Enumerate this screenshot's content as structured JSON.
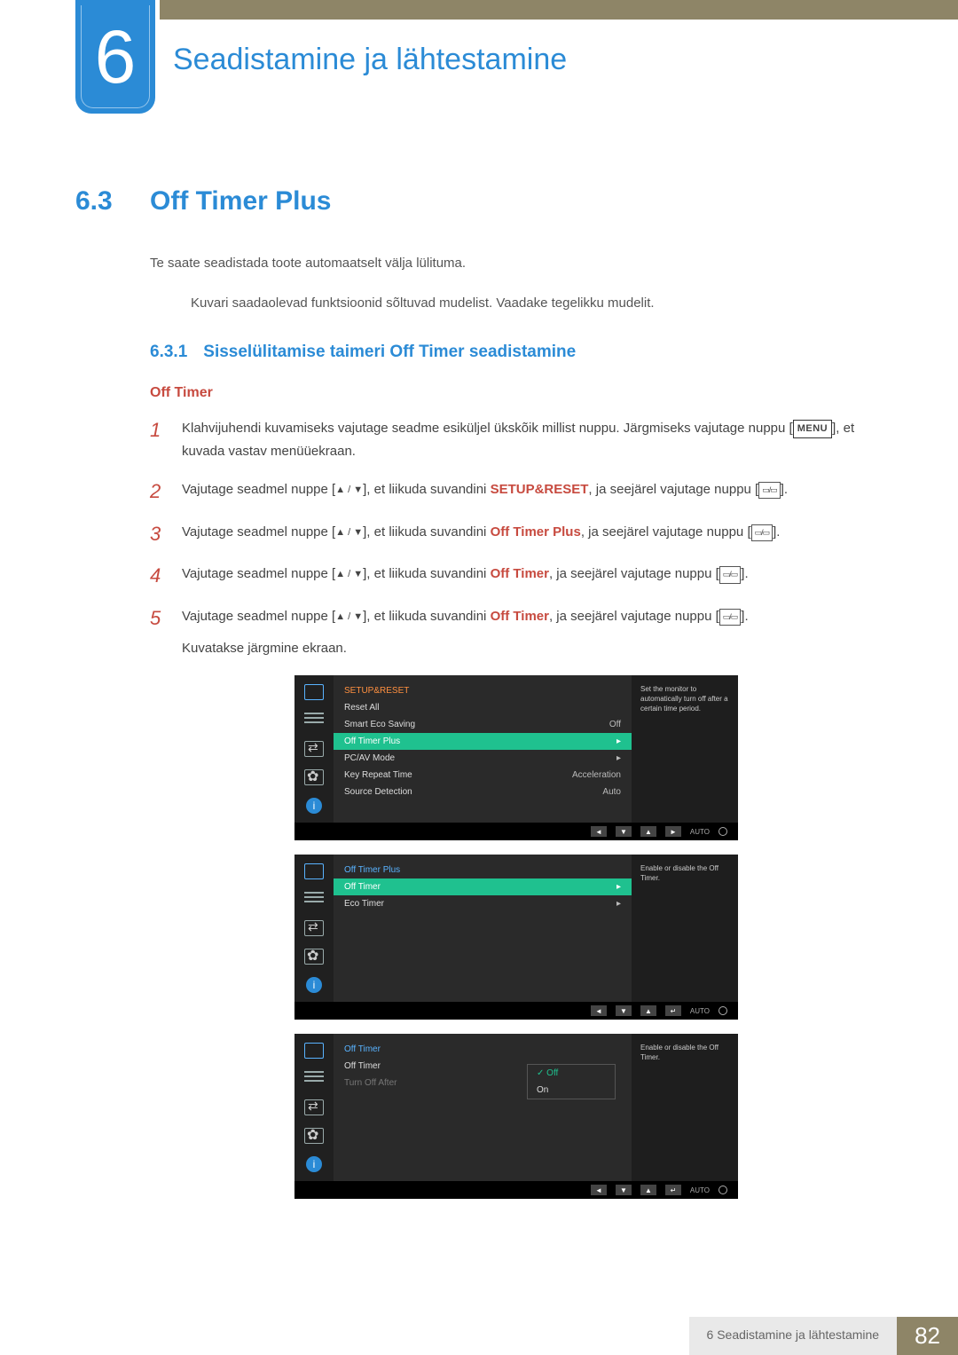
{
  "chapter": {
    "number": "6",
    "title": "Seadistamine ja lähtestamine"
  },
  "section": {
    "number": "6.3",
    "title": "Off Timer Plus"
  },
  "intro": "Te saate seadistada toote automaatselt välja lülituma.",
  "note": "Kuvari saadaolevad funktsioonid sõltuvad mudelist. Vaadake tegelikku mudelit.",
  "subsection": {
    "number": "6.3.1",
    "title": "Sisselülitamise taimeri Off Timer seadistamine"
  },
  "subheading": "Off Timer",
  "menu_label": "MENU",
  "steps": {
    "s1": {
      "num": "1",
      "a": "Klahvijuhendi kuvamiseks vajutage seadme esiküljel ükskõik millist nuppu. Järgmiseks vajutage nuppu [",
      "b": "], et kuvada vastav menüüekraan."
    },
    "s2": {
      "num": "2",
      "a": "Vajutage seadmel nuppe [",
      "b": "], et liikuda suvandini ",
      "target": "SETUP&RESET",
      "c": ", ja seejärel vajutage nuppu [",
      "d": "]."
    },
    "s3": {
      "num": "3",
      "a": "Vajutage seadmel nuppe [",
      "b": "], et liikuda suvandini ",
      "target": "Off Timer Plus",
      "c": ", ja seejärel vajutage nuppu [",
      "d": "]."
    },
    "s4": {
      "num": "4",
      "a": "Vajutage seadmel nuppe [",
      "b": "], et liikuda suvandini ",
      "target": "Off Timer",
      "c": ", ja seejärel vajutage nuppu [",
      "d": "]."
    },
    "s5": {
      "num": "5",
      "a": "Vajutage seadmel nuppe [",
      "b": "], et liikuda suvandini ",
      "target": "Off Timer",
      "c": ", ja seejärel vajutage nuppu [",
      "d": "].",
      "e": "Kuvatakse järgmine ekraan."
    }
  },
  "osd1": {
    "title": "SETUP&RESET",
    "items": [
      {
        "label": "Reset All",
        "val": ""
      },
      {
        "label": "Smart Eco Saving",
        "val": "Off"
      },
      {
        "label": "Off Timer Plus",
        "val": "▸",
        "hl": true
      },
      {
        "label": "PC/AV Mode",
        "val": "▸"
      },
      {
        "label": "Key Repeat Time",
        "val": "Acceleration"
      },
      {
        "label": "Source Detection",
        "val": "Auto"
      }
    ],
    "help": "Set the monitor to automatically turn off after a certain time period."
  },
  "osd2": {
    "title": "Off Timer Plus",
    "items": [
      {
        "label": "Off Timer",
        "val": "▸",
        "hl": true
      },
      {
        "label": "Eco Timer",
        "val": "▸"
      }
    ],
    "help": "Enable or disable the Off Timer."
  },
  "osd3": {
    "title": "Off Timer",
    "items": [
      {
        "label": "Off Timer",
        "val": ""
      },
      {
        "label": "Turn Off After",
        "val": "",
        "dim": true
      }
    ],
    "popup": {
      "opt1": "Off",
      "opt2": "On"
    },
    "help": "Enable or disable the Off Timer."
  },
  "nav": {
    "auto": "AUTO"
  },
  "footer": {
    "label": "6 Seadistamine ja lähtestamine",
    "page": "82"
  },
  "colors": {
    "blue": "#2b8bd6",
    "red": "#c74a3f",
    "olive": "#8e8567",
    "osd_hl": "#1fc18f",
    "osd_title": "#ff9040",
    "osd_title_blue": "#59b3ff"
  }
}
